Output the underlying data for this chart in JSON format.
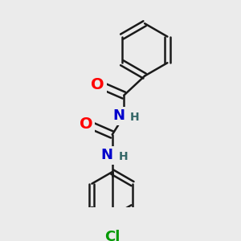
{
  "background_color": "#ebebeb",
  "bond_color": "#1a1a1a",
  "bond_width": 1.8,
  "atom_colors": {
    "O": "#ff0000",
    "N": "#0000cc",
    "Cl": "#009900",
    "H": "#336666",
    "C": "#1a1a1a"
  },
  "font_size_atom": 13,
  "font_size_H": 10,
  "font_size_Cl": 13
}
